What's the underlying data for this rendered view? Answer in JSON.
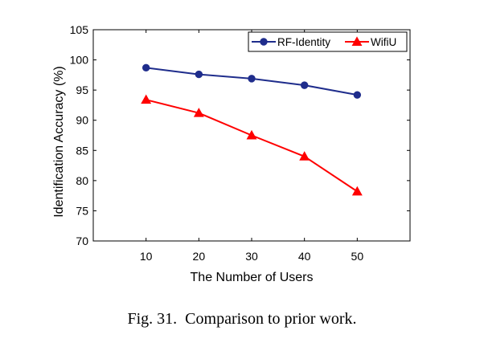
{
  "caption": "Fig. 31.  Comparison to prior work.",
  "chart_data": {
    "type": "line",
    "title": "",
    "xlabel": "The Number of Users",
    "ylabel": "Identification Accuracy (%)",
    "x": [
      10,
      20,
      30,
      40,
      50
    ],
    "x_ticks": [
      "10",
      "20",
      "30",
      "40",
      "50"
    ],
    "xlim": [
      0,
      60
    ],
    "ylim": [
      70,
      105
    ],
    "y_ticks": [
      "70",
      "75",
      "80",
      "85",
      "90",
      "95",
      "100",
      "105"
    ],
    "grid": false,
    "legend_position": "top-right",
    "series": [
      {
        "name": "RF-Identity",
        "values": [
          98.7,
          97.6,
          96.9,
          95.8,
          94.2
        ],
        "color": "#1f2d8c",
        "marker": "circle"
      },
      {
        "name": "WifiU",
        "values": [
          93.4,
          91.2,
          87.5,
          84.0,
          78.2
        ],
        "color": "#ff0000",
        "marker": "triangle"
      }
    ]
  }
}
